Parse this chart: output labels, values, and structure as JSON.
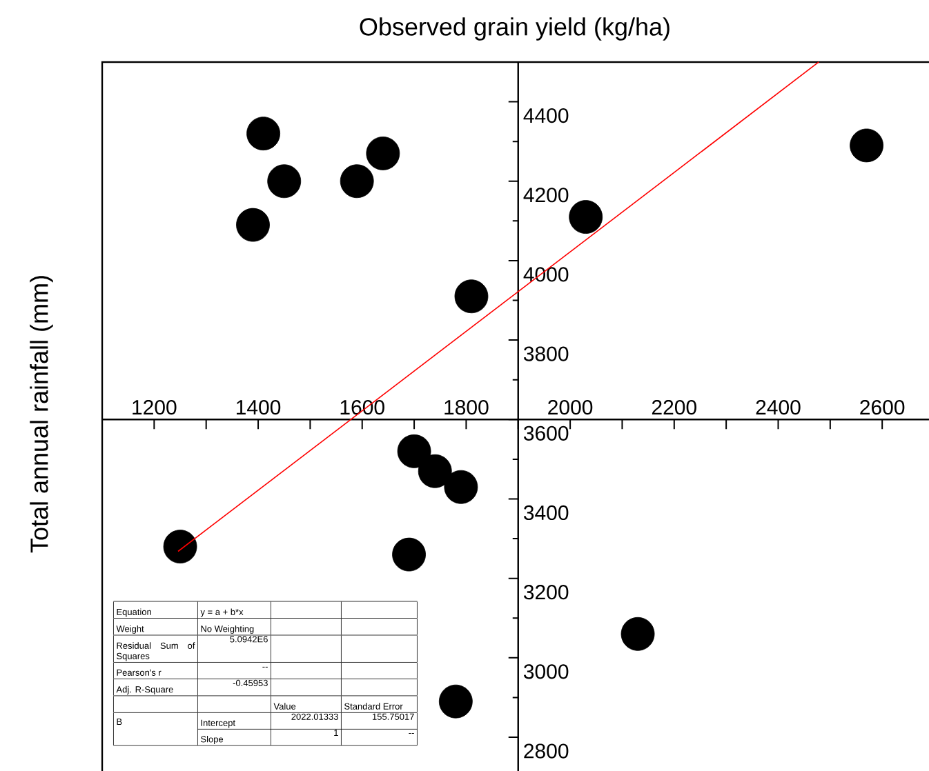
{
  "chart_data": {
    "type": "scatter",
    "xlabel": "Observed grain yield (kg/ha)",
    "ylabel": "Total annual rainfall (mm)",
    "xlim": [
      1100,
      2690
    ],
    "ylim": [
      2715,
      4500
    ],
    "xticks": [
      1200,
      1400,
      1600,
      1800,
      2000,
      2200,
      2400,
      2600
    ],
    "yticks": [
      2800,
      3000,
      3200,
      3400,
      3600,
      3800,
      4000,
      4200,
      4400
    ],
    "grid": false,
    "series": [
      {
        "type": "scatter",
        "color": "#000000",
        "marker": "circle",
        "x": [
          1410,
          1450,
          1390,
          1590,
          1640,
          1810,
          2030,
          2570,
          1250,
          1700,
          1740,
          1790,
          1690,
          1780,
          2130
        ],
        "values": [
          4320,
          4200,
          4090,
          4200,
          4270,
          3910,
          4110,
          4290,
          3280,
          3520,
          3470,
          3430,
          3260,
          2890,
          3060
        ]
      },
      {
        "type": "line",
        "color": "#ff0000",
        "marker": "none",
        "line_style": "solid",
        "x": [
          1246,
          2478
        ],
        "values": [
          3268,
          4500
        ]
      }
    ],
    "annotations": [
      "Equation",
      "y = a + b*x",
      "Weight",
      "No Weighting",
      "Residual Sum of Squares",
      "5.0942E6",
      "Pearson's r",
      "--",
      "Adj. R-Square",
      "-0.45953",
      "Value",
      "Standard Error",
      "B",
      "Intercept",
      "2022.01333",
      "155.75017",
      "Slope",
      "1",
      "--"
    ]
  }
}
